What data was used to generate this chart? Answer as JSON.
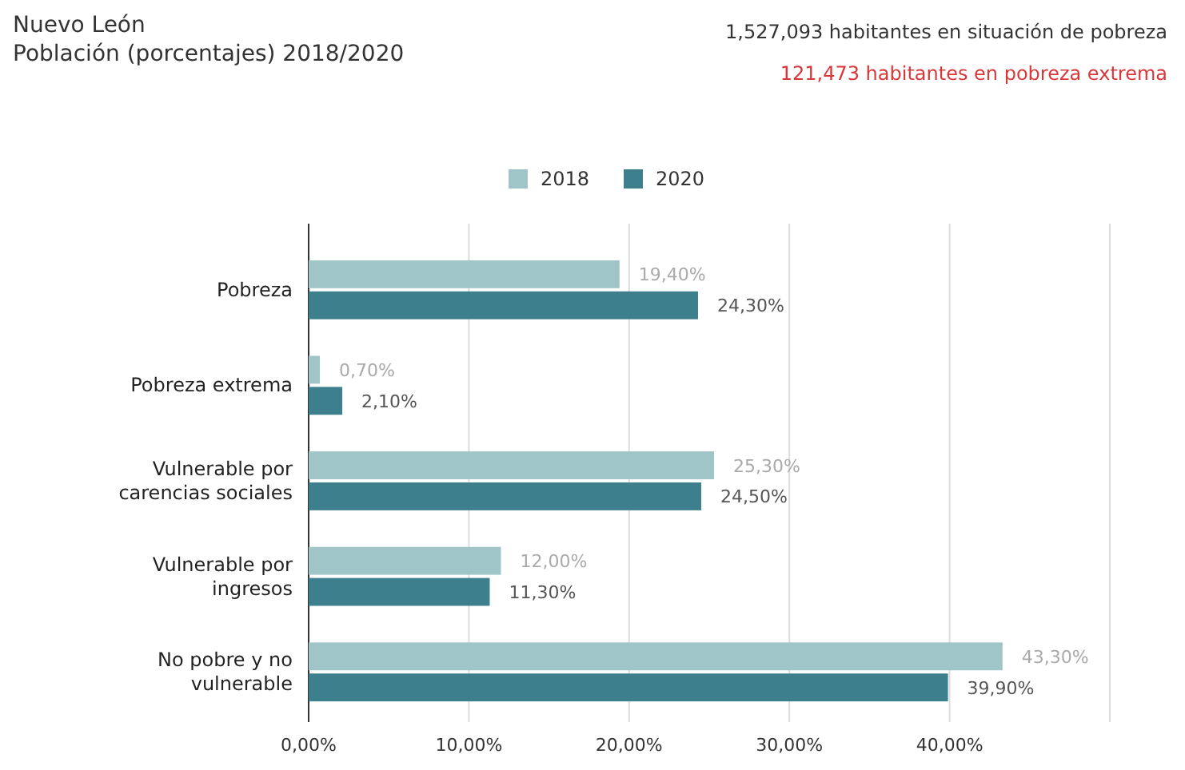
{
  "chart_data": {
    "type": "bar",
    "orientation": "horizontal",
    "title": "Nuevo León",
    "subtitle": "Población (porcentajes) 2018/2020",
    "annotations": [
      "1,527,093 habitantes en situación de pobreza",
      "121,473 habitantes en pobreza extrema"
    ],
    "categories": [
      "Pobreza",
      "Pobreza extrema",
      "Vulnerable por carencias sociales",
      "Vulnerable por ingresos",
      "No pobre y no vulnerable"
    ],
    "series": [
      {
        "name": "2018",
        "color": "#9fc5c8",
        "values": [
          19.4,
          0.7,
          25.3,
          12.0,
          43.3
        ],
        "value_labels": [
          "19,40%",
          "0,70%",
          "25,30%",
          "12,00%",
          "43,30%"
        ]
      },
      {
        "name": "2020",
        "color": "#3d7f8c",
        "values": [
          24.3,
          2.1,
          24.5,
          11.3,
          39.9
        ],
        "value_labels": [
          "24,30%",
          "2,10%",
          "24,50%",
          "11,30%",
          "39,90%"
        ]
      }
    ],
    "xlim": [
      0,
      50
    ],
    "xticks": [
      {
        "value": 0,
        "label": "0,00%"
      },
      {
        "value": 10,
        "label": "10,00%"
      },
      {
        "value": 20,
        "label": "20,00%"
      },
      {
        "value": 30,
        "label": "30,00%"
      },
      {
        "value": 40,
        "label": "40,00%"
      },
      {
        "value": 50,
        "label": null
      }
    ],
    "grid": "x",
    "legend": "top"
  }
}
